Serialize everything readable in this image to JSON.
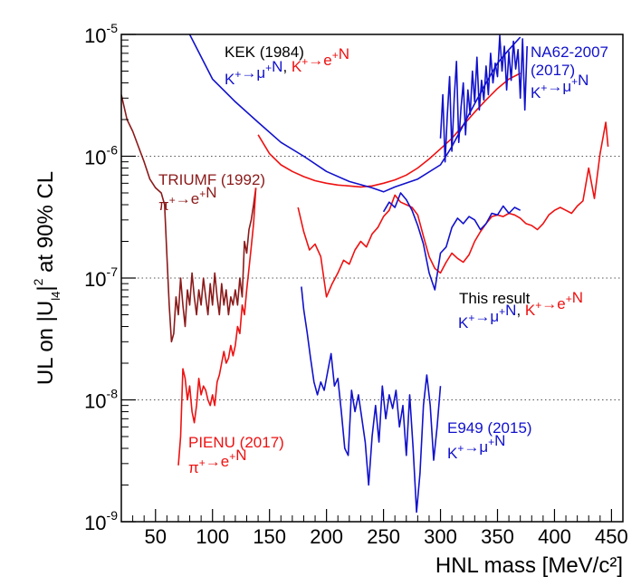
{
  "chart_data": {
    "type": "line",
    "title": "",
    "xlabel": "HNL mass [MeV/c²]",
    "ylabel": "UL on |U_l4|² at 90% CL",
    "xlim": [
      20,
      460
    ],
    "ylim": [
      1e-09,
      1e-05
    ],
    "y_scale": "log",
    "x_ticks": [
      "50",
      "100",
      "150",
      "200",
      "250",
      "300",
      "350",
      "400",
      "450"
    ],
    "x_tick_values": [
      50,
      100,
      150,
      200,
      250,
      300,
      350,
      400,
      450
    ],
    "y_ticks": [
      {
        "value": 1e-09,
        "base": "10",
        "exp": "-9"
      },
      {
        "value": 1e-08,
        "base": "10",
        "exp": "-8"
      },
      {
        "value": 1e-07,
        "base": "10",
        "exp": "-7"
      },
      {
        "value": 1e-06,
        "base": "10",
        "exp": "-6"
      },
      {
        "value": 1e-05,
        "base": "10",
        "exp": "-5"
      }
    ],
    "grid": "horizontal dotted at decades",
    "colors": {
      "red": "#ee1111",
      "blue": "#1111cc",
      "darkred": "#8b1a1a",
      "black": "#000000"
    },
    "annotations": [
      {
        "name": "kek-label",
        "text": "KEK (1984)",
        "color": "black"
      },
      {
        "name": "kek-processes",
        "parts": [
          {
            "text": "K⁺→μ⁺N",
            "color": "blue"
          },
          {
            "text": ", ",
            "color": "black"
          },
          {
            "text": "K⁺→e⁺N",
            "color": "red"
          }
        ]
      },
      {
        "name": "na62-label",
        "text": "NA62-2007",
        "color": "blue"
      },
      {
        "name": "na62-year",
        "text": "(2017)",
        "color": "blue"
      },
      {
        "name": "na62-process",
        "text": "K⁺→μ⁺N",
        "color": "blue"
      },
      {
        "name": "triumf-label",
        "text": "TRIUMF (1992)",
        "color": "darkred"
      },
      {
        "name": "triumf-process",
        "text": "π⁺→e⁺N",
        "color": "darkred"
      },
      {
        "name": "this-result-label",
        "text": "This result",
        "color": "black"
      },
      {
        "name": "this-result-processes",
        "parts": [
          {
            "text": "K⁺→μ⁺N",
            "color": "blue"
          },
          {
            "text": ", ",
            "color": "black"
          },
          {
            "text": "K⁺→e⁺N",
            "color": "red"
          }
        ]
      },
      {
        "name": "e949-label",
        "text": "E949 (2015)",
        "color": "blue"
      },
      {
        "name": "e949-process",
        "text": "K⁺→μ⁺N",
        "color": "blue"
      },
      {
        "name": "pienu-label",
        "text": "PIENU (2017)",
        "color": "red"
      },
      {
        "name": "pienu-process",
        "text": "π⁺→e⁺N",
        "color": "red"
      }
    ],
    "series": [
      {
        "color": "darkred",
        "x": [
          20,
          25,
          30,
          35,
          40,
          45,
          50,
          55,
          58,
          60,
          62,
          64,
          66,
          68,
          70,
          72,
          74,
          76,
          78,
          80,
          82,
          84,
          86,
          88,
          90,
          92,
          94,
          96,
          98,
          100,
          102,
          104,
          106,
          108,
          110,
          112,
          114,
          116,
          118,
          120,
          122,
          124,
          126,
          128,
          130,
          132,
          134,
          136,
          138
        ],
        "y": [
          3.2e-06,
          2e-06,
          1.6e-06,
          1.2e-06,
          9e-07,
          6.5e-07,
          5.5e-07,
          5e-07,
          4e-07,
          1.5e-07,
          6e-08,
          3e-08,
          3.5e-08,
          7e-08,
          5e-08,
          1e-07,
          6e-08,
          4e-08,
          8e-08,
          6e-08,
          1.1e-07,
          7e-08,
          5e-08,
          8e-08,
          6e-08,
          1e-07,
          7e-08,
          5e-08,
          9e-08,
          6e-08,
          1.1e-07,
          7e-08,
          5e-08,
          9e-08,
          6e-08,
          8e-08,
          5e-08,
          7e-08,
          6e-08,
          8e-08,
          6e-08,
          1e-07,
          7e-08,
          2e-07,
          1.6e-07,
          2.5e-07,
          3e-07,
          4e-07,
          5.5e-07
        ]
      },
      {
        "color": "red",
        "x": [
          70,
          72,
          74,
          76,
          78,
          80,
          82,
          84,
          86,
          88,
          90,
          92,
          94,
          96,
          98,
          100,
          102,
          104,
          106,
          108,
          110,
          112,
          114,
          116,
          118,
          120,
          122,
          124,
          126,
          128,
          130,
          132,
          134,
          136,
          138
        ],
        "y": [
          2.9e-09,
          5e-09,
          1.8e-08,
          1.5e-08,
          1e-08,
          1.3e-08,
          8e-09,
          6.5e-09,
          9e-09,
          1.5e-08,
          1.1e-08,
          1.3e-08,
          1.2e-08,
          1e-08,
          9e-09,
          1.1e-08,
          9e-09,
          1.4e-08,
          1.6e-08,
          2e-08,
          2.5e-08,
          2e-08,
          2.2e-08,
          2.8e-08,
          2.3e-08,
          2.8e-08,
          4e-08,
          3.5e-08,
          6e-08,
          5e-08,
          8e-08,
          1.2e-07,
          1.8e-07,
          2.8e-07,
          5.5e-07
        ]
      },
      {
        "color": "red",
        "x": [
          140,
          150,
          160,
          170,
          180,
          190,
          200,
          210,
          220,
          230,
          240,
          250,
          260,
          270,
          280,
          290,
          300,
          310,
          320,
          330,
          340,
          350,
          360,
          370
        ],
        "y": [
          1.5e-06,
          1.05e-06,
          8.5e-07,
          7.5e-07,
          6.8e-07,
          6.3e-07,
          6e-07,
          5.8e-07,
          5.7e-07,
          5.6e-07,
          5.7e-07,
          6e-07,
          6.4e-07,
          7e-07,
          8e-07,
          9.5e-07,
          1.15e-06,
          1.4e-06,
          1.8e-06,
          2.3e-06,
          2.9e-06,
          3.6e-06,
          4.3e-06,
          4.8e-06
        ]
      },
      {
        "color": "red",
        "x": [
          175,
          180,
          185,
          190,
          195,
          200,
          205,
          210,
          215,
          220,
          225,
          230,
          235,
          240,
          245,
          250,
          255,
          260,
          265,
          270,
          275,
          280,
          285,
          290,
          295,
          300,
          305,
          310,
          315,
          320,
          325,
          330,
          335,
          340,
          345,
          350,
          355,
          360,
          365,
          370,
          375,
          380,
          385,
          390,
          395,
          400,
          405,
          410,
          415,
          420,
          425,
          430,
          435,
          440,
          445,
          447
        ],
        "y": [
          3.8e-07,
          2.4e-07,
          1.7e-07,
          1.9e-07,
          1.5e-07,
          7e-08,
          9e-08,
          1.1e-07,
          1.4e-07,
          1.3e-07,
          1.7e-07,
          2e-07,
          1.8e-07,
          2.3e-07,
          2.6e-07,
          3.2e-07,
          3.6e-07,
          4.8e-07,
          4.2e-07,
          4e-07,
          3.8e-07,
          3.3e-07,
          2.2e-07,
          1.5e-07,
          1.2e-07,
          1.1e-07,
          1.35e-07,
          1.6e-07,
          1.45e-07,
          1.35e-07,
          1.55e-07,
          2e-07,
          2.4e-07,
          2.8e-07,
          3.2e-07,
          3.3e-07,
          3.2e-07,
          3.4e-07,
          3.3e-07,
          3.1e-07,
          2.8e-07,
          2.7e-07,
          2.5e-07,
          2.8e-07,
          3.3e-07,
          3.6e-07,
          3.8e-07,
          3.6e-07,
          3.4e-07,
          3.9e-07,
          4.3e-07,
          8e-07,
          4.5e-07,
          1.05e-06,
          1.9e-06,
          1.2e-06
        ]
      },
      {
        "color": "blue",
        "x": [
          80,
          100,
          120,
          140,
          160,
          180,
          200,
          220,
          240,
          250,
          260,
          280,
          300,
          310,
          320,
          330,
          340,
          350,
          360,
          370
        ],
        "y": [
          1e-05,
          4.3e-06,
          2.8e-06,
          1.9e-06,
          1.3e-06,
          1e-06,
          7.5e-07,
          6.2e-07,
          5.5e-07,
          5.1e-07,
          5.6e-07,
          6.5e-07,
          8.5e-07,
          1.2e-06,
          1.8e-06,
          2.7e-06,
          4e-06,
          5.8e-06,
          7.5e-06,
          9.5e-06
        ]
      },
      {
        "color": "blue",
        "x": [
          300,
          302,
          304,
          306,
          308,
          310,
          312,
          314,
          316,
          318,
          320,
          322,
          324,
          326,
          328,
          330,
          332,
          334,
          336,
          338,
          340,
          342,
          344,
          346,
          348,
          350,
          352,
          354,
          356,
          358,
          360,
          362,
          364,
          366,
          368,
          370,
          372,
          374,
          376
        ],
        "y": [
          1.4e-06,
          3.2e-06,
          9e-07,
          2.2e-06,
          4.5e-06,
          1.1e-06,
          3e-06,
          6e-06,
          1.3e-06,
          2.5e-06,
          4e-06,
          1.5e-06,
          3.5e-06,
          2.2e-06,
          5e-06,
          2.8e-06,
          6.5e-06,
          2.4e-06,
          4.2e-06,
          2.9e-06,
          5.5e-06,
          3.2e-06,
          7e-06,
          4e-06,
          5.8e-06,
          4.5e-06,
          9.8e-06,
          5e-06,
          8e-06,
          3.5e-06,
          7.2e-06,
          4.2e-06,
          8.8e-06,
          5.2e-06,
          7.5e-06,
          3e-06,
          9.2e-06,
          2.4e-06,
          8e-06
        ]
      },
      {
        "color": "blue",
        "x": [
          250,
          255,
          260,
          265,
          270,
          275,
          280,
          285,
          290,
          295,
          300,
          305,
          310,
          315,
          320,
          325,
          330,
          335,
          340,
          345,
          350,
          355,
          360,
          365,
          370
        ],
        "y": [
          3.5e-07,
          4.2e-07,
          3.8e-07,
          5e-07,
          4.4e-07,
          3.6e-07,
          2.7e-07,
          1.9e-07,
          1.1e-07,
          8e-08,
          1.6e-07,
          1.8e-07,
          2.6e-07,
          3.1e-07,
          2.8e-07,
          3.2e-07,
          3e-07,
          2.5e-07,
          2.8e-07,
          3.4e-07,
          3.3e-07,
          3.9e-07,
          3.4e-07,
          3.8e-07,
          3.6e-07
        ]
      },
      {
        "color": "blue",
        "x": [
          178,
          180,
          183,
          186,
          189,
          192,
          195,
          198,
          201,
          204,
          207,
          210,
          213,
          216,
          219,
          222,
          225,
          228,
          231,
          234,
          237,
          240,
          243,
          246,
          249,
          252,
          255,
          258,
          261,
          264,
          267,
          270,
          273,
          276,
          279,
          282,
          285,
          288,
          291,
          294,
          297,
          300
        ],
        "y": [
          8.5e-08,
          5.5e-08,
          3.6e-08,
          2.2e-08,
          1.4e-08,
          1.1e-08,
          1.4e-08,
          1.2e-08,
          1.7e-08,
          2.4e-08,
          1.3e-08,
          1.5e-08,
          8e-09,
          4e-09,
          3.5e-09,
          1.2e-08,
          8e-09,
          1.1e-08,
          7e-09,
          4.5e-09,
          2e-09,
          5e-09,
          9e-09,
          4.5e-09,
          1.3e-08,
          7e-09,
          1.1e-08,
          8.5e-09,
          1.2e-08,
          6e-09,
          9e-09,
          3.5e-09,
          1.1e-08,
          4e-09,
          1.2e-09,
          2.5e-09,
          9e-09,
          1.6e-08,
          9e-09,
          3.2e-09,
          6e-09,
          1.3e-08
        ]
      }
    ]
  }
}
